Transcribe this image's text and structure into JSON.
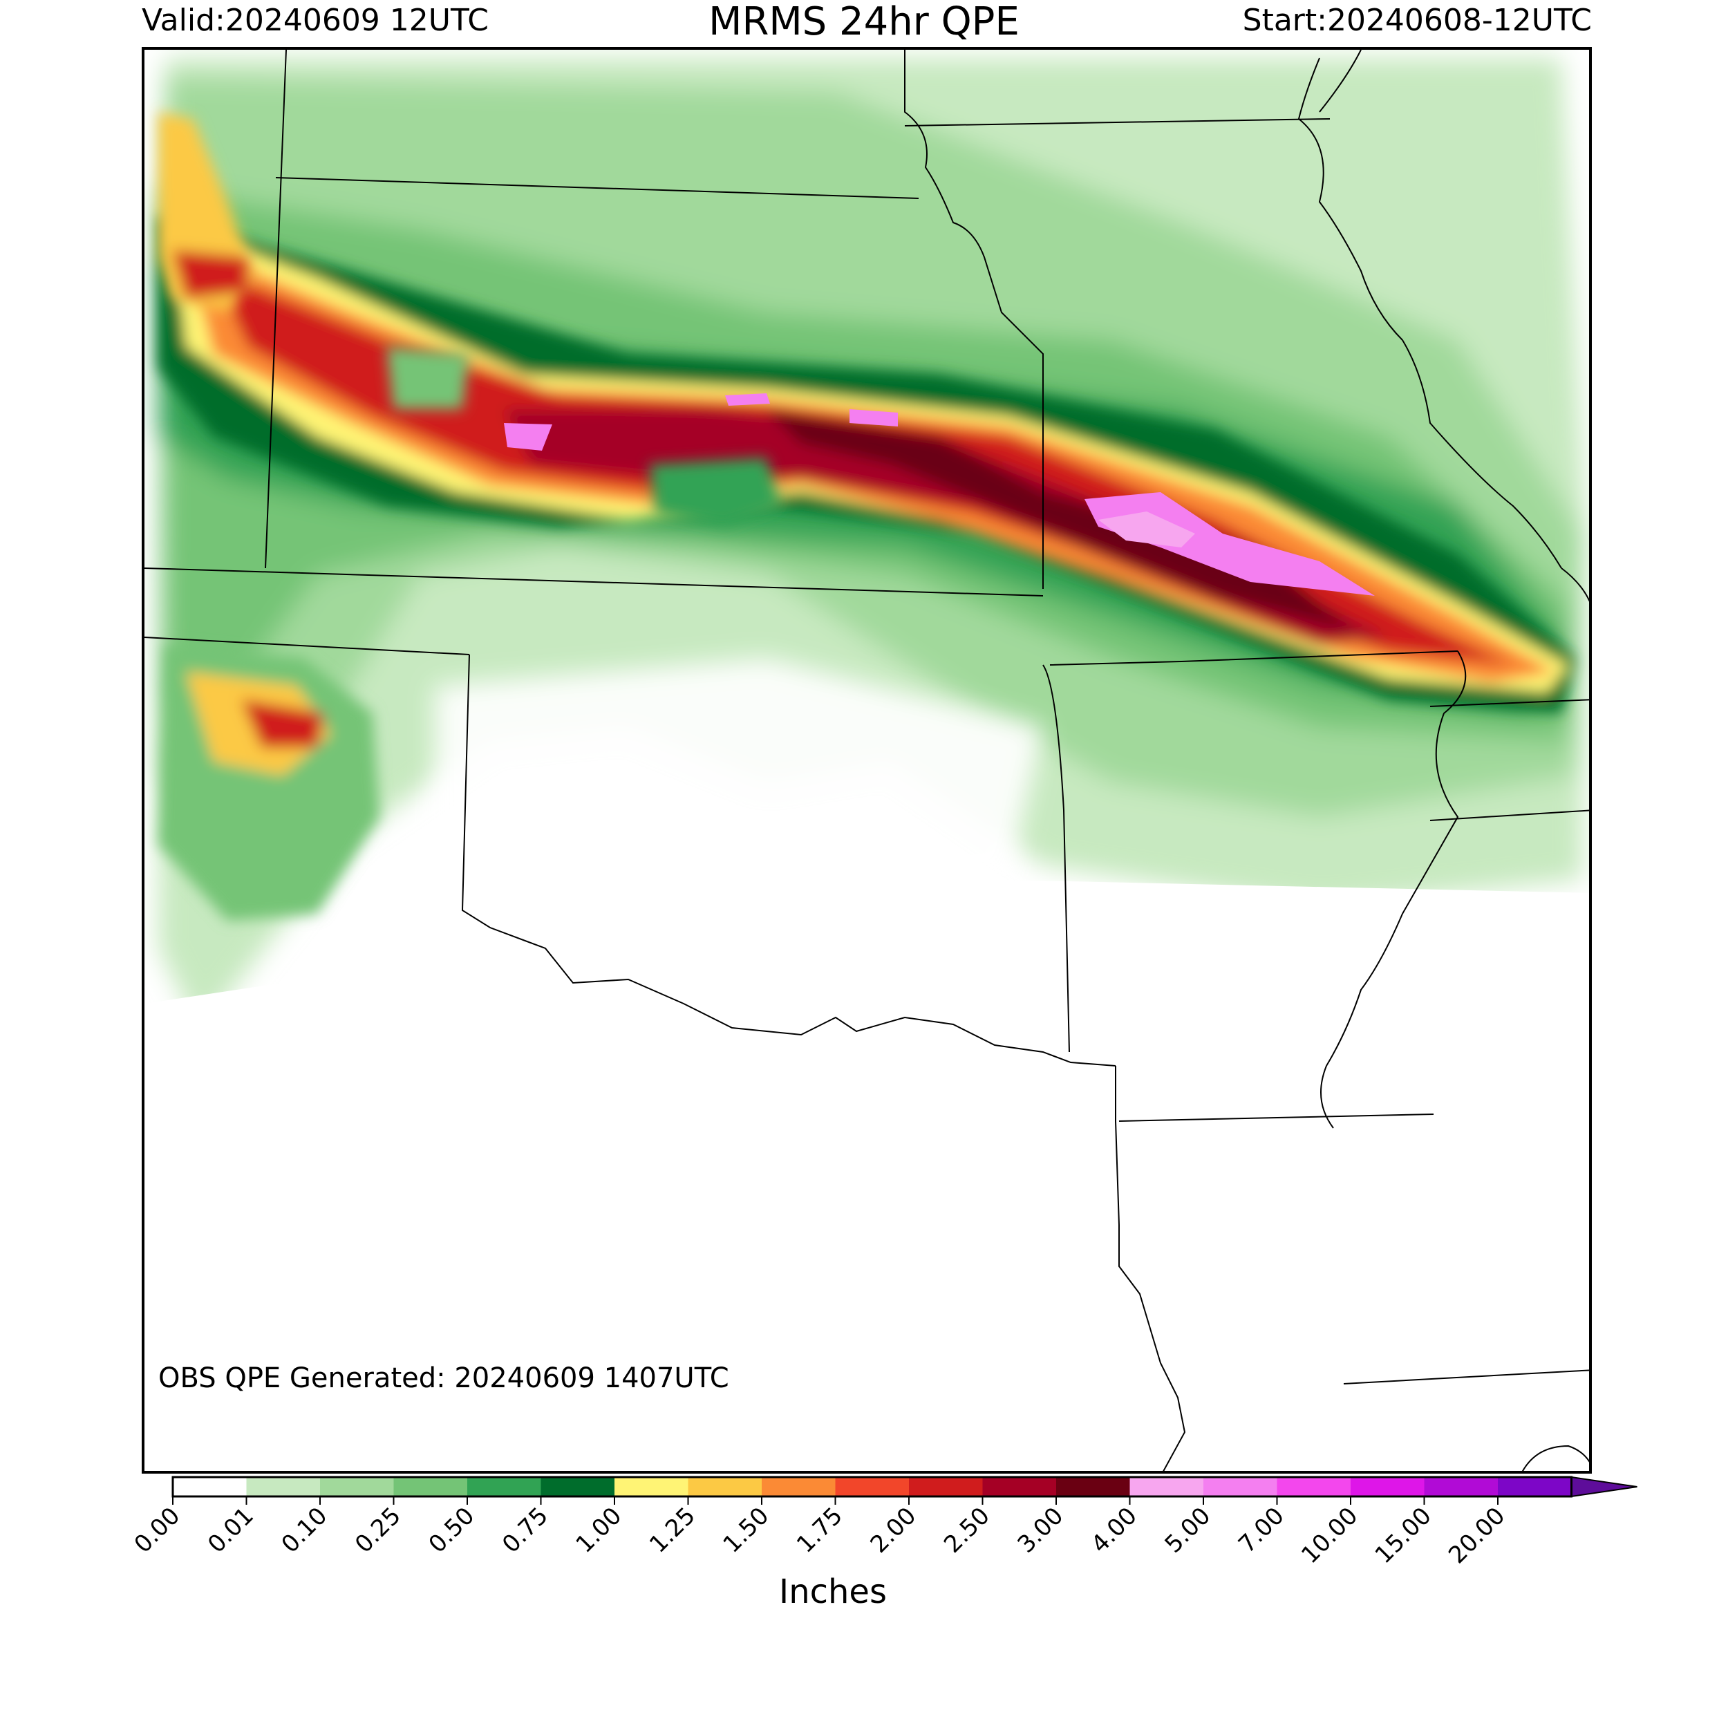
{
  "header": {
    "valid": "Valid:20240609 12UTC",
    "title": "MRMS 24hr QPE",
    "start": "Start:20240608-12UTC"
  },
  "map": {
    "note": "OBS QPE Generated: 20240609 1407UTC"
  },
  "colorbar": {
    "label": "Inches",
    "ticks": [
      "0.00",
      "0.01",
      "0.10",
      "0.25",
      "0.50",
      "0.75",
      "1.00",
      "1.25",
      "1.50",
      "1.75",
      "2.00",
      "2.50",
      "3.00",
      "4.00",
      "5.00",
      "7.00",
      "10.00",
      "15.00",
      "20.00"
    ],
    "colors": [
      "#ffffff",
      "#c7e9c0",
      "#a1d99b",
      "#74c476",
      "#31a354",
      "#006d2c",
      "#fff475",
      "#fcc944",
      "#fb8a35",
      "#f2462a",
      "#d01c1d",
      "#a50025",
      "#6a0012",
      "#f7a6ef",
      "#f47ff0",
      "#f347ed",
      "#de16e8",
      "#b10bd6",
      "#7d06c7"
    ],
    "extend_color": "#5e0d9a"
  }
}
